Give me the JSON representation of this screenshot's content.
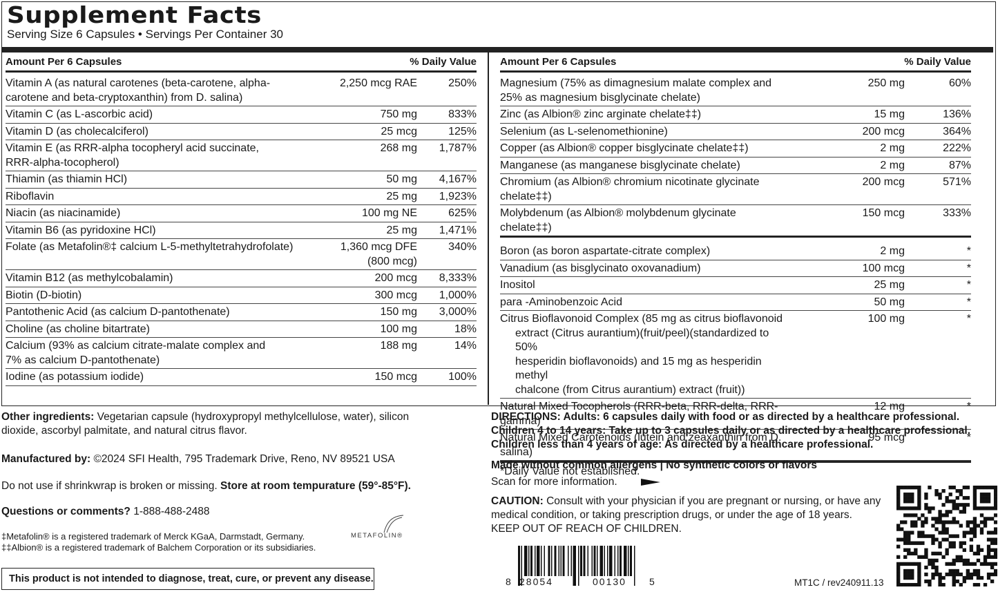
{
  "title": "Supplement Facts",
  "serving": "Serving Size 6 Capsules • Servings Per Container 30",
  "header": {
    "amount": "Amount Per 6 Capsules",
    "dv": "% Daily Value"
  },
  "left_rows": [
    {
      "name": "Vitamin A (as natural carotenes (beta-carotene, alpha-",
      "name2": "carotene and beta-cryptoxanthin) from D. salina)",
      "amount": "2,250 mcg RAE",
      "dv": "250%"
    },
    {
      "name": "Vitamin C (as L-ascorbic acid)",
      "amount": "750 mg",
      "dv": "833%"
    },
    {
      "name": "Vitamin D (as cholecalciferol)",
      "amount": "25 mcg",
      "dv": "125%"
    },
    {
      "name": "Vitamin E (as RRR-alpha tocopheryl acid succinate,",
      "name2": "RRR-alpha-tocopherol)",
      "amount": "268 mg",
      "dv": "1,787%"
    },
    {
      "name": "Thiamin (as thiamin HCl)",
      "amount": "50 mg",
      "dv": "4,167%"
    },
    {
      "name": "Riboflavin",
      "amount": "25 mg",
      "dv": "1,923%"
    },
    {
      "name": "Niacin (as niacinamide)",
      "amount": "100 mg NE",
      "dv": "625%"
    },
    {
      "name": "Vitamin B6 (as pyridoxine HCl)",
      "amount": "25 mg",
      "dv": "1,471%"
    },
    {
      "name": "Folate (as Metafolin®‡ calcium L-5-methyltetrahydrofolate)",
      "amount": "1,360 mcg DFE",
      "amount2": "(800 mcg)",
      "dv": "340%"
    },
    {
      "name": "Vitamin B12 (as methylcobalamin)",
      "amount": "200 mcg",
      "dv": "8,333%"
    },
    {
      "name": "Biotin (D-biotin)",
      "amount": "300 mcg",
      "dv": "1,000%"
    },
    {
      "name": "Pantothenic Acid (as calcium D-pantothenate)",
      "amount": "150 mg",
      "dv": "3,000%"
    },
    {
      "name": "Choline (as choline bitartrate)",
      "amount": "100 mg",
      "dv": "18%"
    },
    {
      "name": "Calcium (93% as calcium citrate-malate complex and",
      "name2": "7% as calcium D-pantothenate)",
      "amount": "188 mg",
      "dv": "14%"
    },
    {
      "name": "Iodine (as potassium iodide)",
      "amount": "150 mcg",
      "dv": "100%"
    }
  ],
  "right_rows": [
    {
      "name": "Magnesium (75% as dimagnesium malate complex and",
      "name2": "25% as magnesium bisglycinate chelate)",
      "amount": "250 mg",
      "dv": "60%"
    },
    {
      "name": "Zinc (as Albion® zinc arginate chelate‡‡)",
      "amount": "15 mg",
      "dv": "136%"
    },
    {
      "name": "Selenium (as L-selenomethionine)",
      "amount": "200 mcg",
      "dv": "364%"
    },
    {
      "name": "Copper (as Albion® copper bisglycinate chelate‡‡)",
      "amount": "2 mg",
      "dv": "222%"
    },
    {
      "name": "Manganese (as manganese bisglycinate chelate)",
      "amount": "2 mg",
      "dv": "87%"
    },
    {
      "name": "Chromium (as Albion® chromium nicotinate glycinate chelate‡‡)",
      "amount": "200 mcg",
      "dv": "571%"
    },
    {
      "name": "Molybdenum (as Albion® molybdenum glycinate chelate‡‡)",
      "amount": "150 mcg",
      "dv": "333%"
    }
  ],
  "right_rows2": [
    {
      "name": "Boron (as boron aspartate-citrate complex)",
      "amount": "2 mg",
      "dv": "*"
    },
    {
      "name": "Vanadium (as bisglycinato oxovanadium)",
      "amount": "100 mcg",
      "dv": "*"
    },
    {
      "name": "Inositol",
      "amount": "25 mg",
      "dv": "*"
    },
    {
      "name": "para -Aminobenzoic Acid",
      "amount": "50 mg",
      "dv": "*"
    },
    {
      "name": "Citrus Bioflavonoid Complex (85 mg as citrus bioflavonoid",
      "name2": "extract (Citrus aurantium)(fruit/peel)(standardized to 50%",
      "name3": "hesperidin bioflavonoids) and 15 mg as hesperidin methyl",
      "name4": "chalcone (from Citrus aurantium) extract (fruit))",
      "amount": "100 mg",
      "dv": "*"
    },
    {
      "name": "Natural Mixed Tocopherols (RRR-beta, RRR-delta, RRR-gamma)",
      "amount": "12 mg",
      "dv": "*"
    },
    {
      "name": "Natural Mixed Carotenoids (lutein and zeaxanthin from D. salina)",
      "amount": "95 mcg",
      "dv": "*"
    }
  ],
  "dv_note": "*Daily Value not established.",
  "other": {
    "label": "Other ingredients:",
    "text": " Vegetarian capsule (hydroxypropyl methylcellulose, water), silicon",
    "text2": "dioxide, ascorbyl palmitate, and natural citrus flavor."
  },
  "manufacturer": {
    "label": "Manufactured by:",
    "text": " ©2024 SFI Health, 795 Trademark Drive, Reno, NV 89521 USA"
  },
  "storage": {
    "text": "Do not use if shrinkwrap is broken or missing. ",
    "bold": "Store at room tempurature (59°-85°F)."
  },
  "questions": {
    "label": "Questions or comments?",
    "text": " 1-888-488-2488"
  },
  "tm1": "‡Metafolin® is a registered trademark of Merck KGaA, Darmstadt, Germany.",
  "tm2": "‡‡Albion® is a registered trademark of Balchem Corporation or its subsidiaries.",
  "metafolin_logo": "METAFOLIN®",
  "disclaimer": "This product is not intended to diagnose, treat, cure, or prevent any disease.",
  "directions": {
    "l1": "DIRECTIONS: Adults: 6 capsules daily with food or as directed by a healthcare professional.",
    "l2": "Children 4 to 14 years: Take up to 3 capsules daily or as directed by a healthcare professional.",
    "l3": "Children less than 4 years of age: As directed by a healthcare professional."
  },
  "allergens": "Made without common allergens | No synthetic colors or flavors",
  "scan": "Scan for more information.",
  "caution": {
    "label": "CAUTION:",
    "l1": " Consult with your physician if you are pregnant or nursing, or have any",
    "l2": "medical condition, or taking prescription drugs, or under the age of 18 years.",
    "l3": "KEEP OUT OF REACH OF CHILDREN."
  },
  "barcode": {
    "first": "8",
    "left": "28054",
    "right": "00130",
    "last": "5"
  },
  "revision": "MT1C / rev240911.13"
}
